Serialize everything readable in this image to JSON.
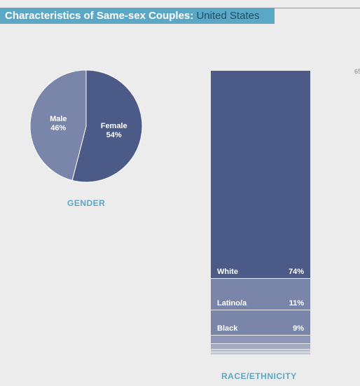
{
  "header": {
    "title": "Characteristics of Same-sex Couples: ",
    "region": "United States"
  },
  "edge_text": "65",
  "colors": {
    "accent": "#5ba8c6",
    "dark": "#4b5a86",
    "mid": "#7a86a9",
    "light": "#a3abc4"
  },
  "chart_data": [
    {
      "type": "pie",
      "title": "GENDER",
      "slices": [
        {
          "name": "Female",
          "value": 54,
          "label": "54%",
          "color": "#4b5a86"
        },
        {
          "name": "Male",
          "value": 46,
          "label": "46%",
          "color": "#7a86a9"
        }
      ]
    },
    {
      "type": "bar",
      "stacked": true,
      "title": "RACE/ETHNICITY",
      "categories": [
        "White",
        "Latino/a",
        "Black",
        "",
        "",
        "",
        ""
      ],
      "values": [
        74,
        11,
        9,
        3,
        2,
        1,
        1
      ],
      "labels": [
        "74%",
        "11%",
        "9%",
        "",
        "",
        "",
        ""
      ],
      "colors": [
        "#4b5a86",
        "#7a86a9",
        "#7a86a9",
        "#8e98b6",
        "#a3abc4",
        "#b6bdd1",
        "#c4c9da"
      ]
    }
  ]
}
